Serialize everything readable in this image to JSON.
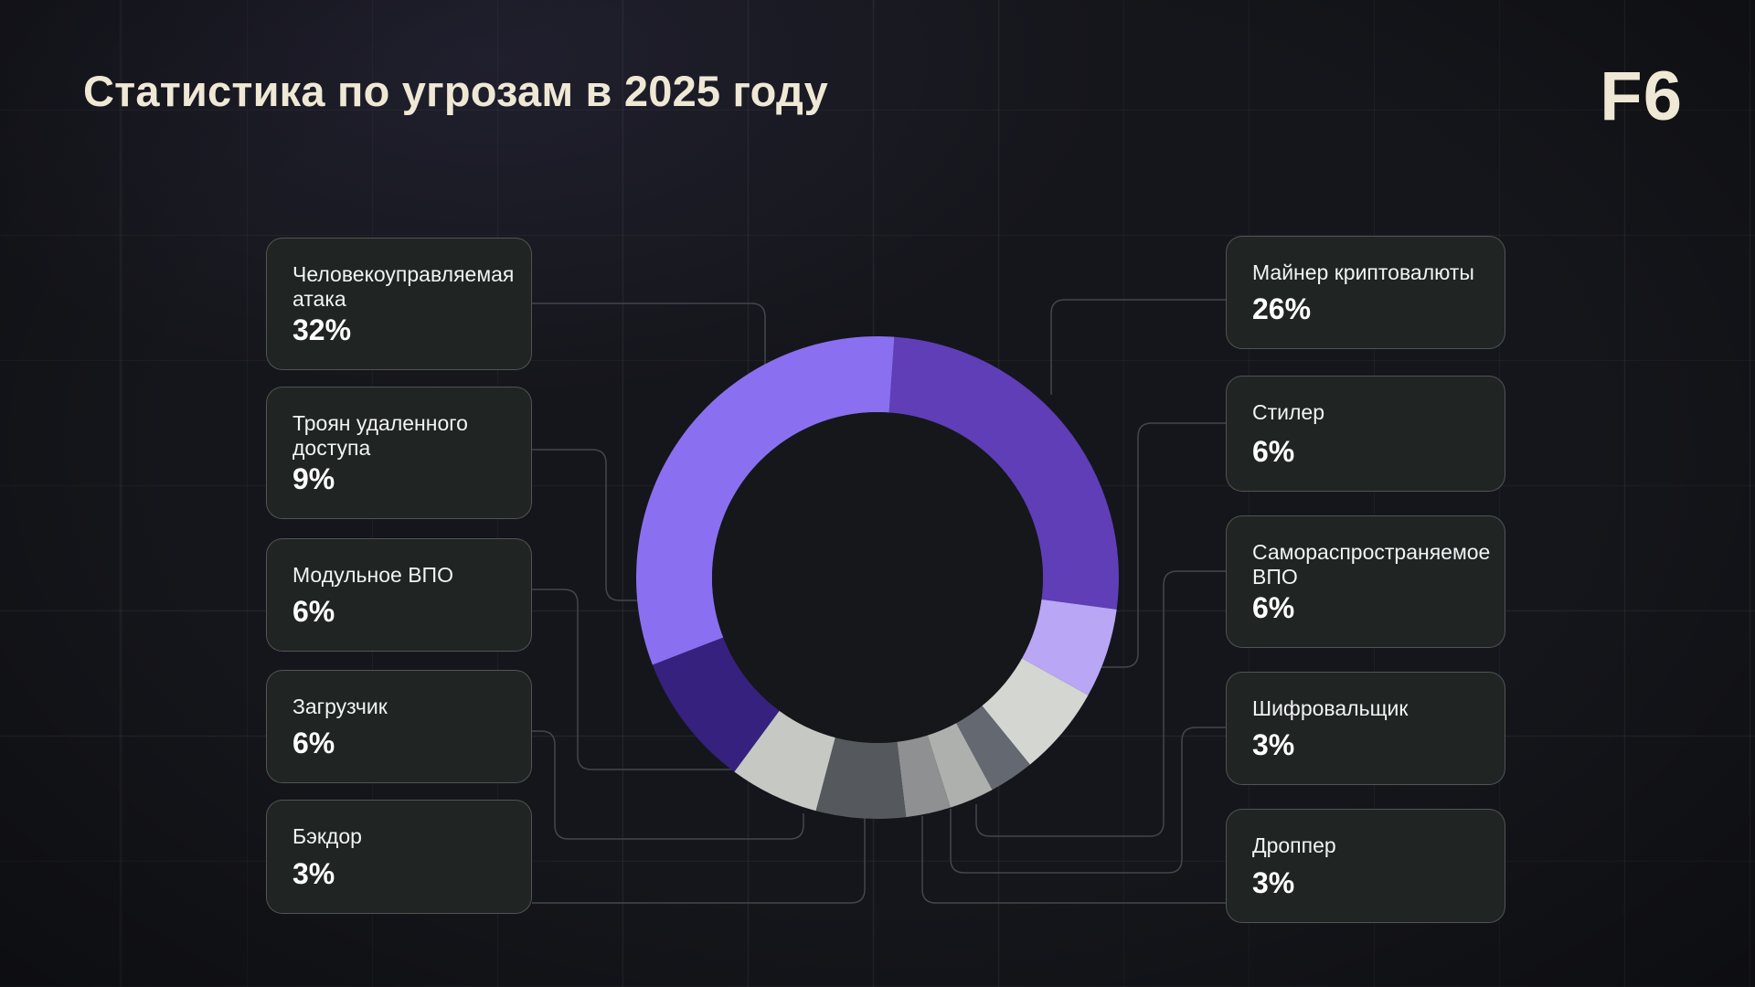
{
  "header": {
    "title": "Статистика по угрозам в 2025 году",
    "logo": "F6"
  },
  "chart_data": {
    "type": "pie",
    "subtype": "donut",
    "title": "Статистика по угрозам в 2025 году",
    "start_angle_deg": 4,
    "direction": "clockwise",
    "unit": "%",
    "total": 100,
    "segments": [
      {
        "label": "Майнер криптовалюты",
        "value": 26,
        "color": "#5f3eb8"
      },
      {
        "label": "Стилер",
        "value": 6,
        "color": "#b9a6f5"
      },
      {
        "label": "Самораспространяемое ВПО",
        "value": 6,
        "color": "#d4d6d2"
      },
      {
        "label": "Шифровальщик",
        "value": 3,
        "color": "#646870"
      },
      {
        "label": "Дроппер",
        "value": 3,
        "color": "#aeb0ad"
      },
      {
        "label": "Бэкдор",
        "value": 3,
        "color": "#8e9092"
      },
      {
        "label": "Загрузчик",
        "value": 6,
        "color": "#55585c"
      },
      {
        "label": "Модульное ВПО",
        "value": 6,
        "color": "#c6c8c4"
      },
      {
        "label": "Троян удаленного доступа",
        "value": 9,
        "color": "#37217e"
      },
      {
        "label": "Человекоуправляемая атака",
        "value": 32,
        "color": "#8a70f0"
      }
    ]
  },
  "left_cards": [
    {
      "label": "Человекоуправляемая атака",
      "value": "32%"
    },
    {
      "label": "Троян удаленного доступа",
      "value": "9%"
    },
    {
      "label": "Модульное ВПО",
      "value": "6%"
    },
    {
      "label": "Загрузчик",
      "value": "6%"
    },
    {
      "label": "Бэкдор",
      "value": "3%"
    }
  ],
  "right_cards": [
    {
      "label": "Майнер криптовалюты",
      "value": "26%"
    },
    {
      "label": "Стилер",
      "value": "6%"
    },
    {
      "label": "Самораспространяемое ВПО",
      "value": "6%"
    },
    {
      "label": "Шифровальщик",
      "value": "3%"
    },
    {
      "label": "Дроппер",
      "value": "3%"
    }
  ],
  "colors": {
    "background": "#15161b",
    "card_background": "#202423",
    "accent_cream": "#efe8d5",
    "connector_line": "#42464e",
    "donut_hole": "#16171b"
  }
}
